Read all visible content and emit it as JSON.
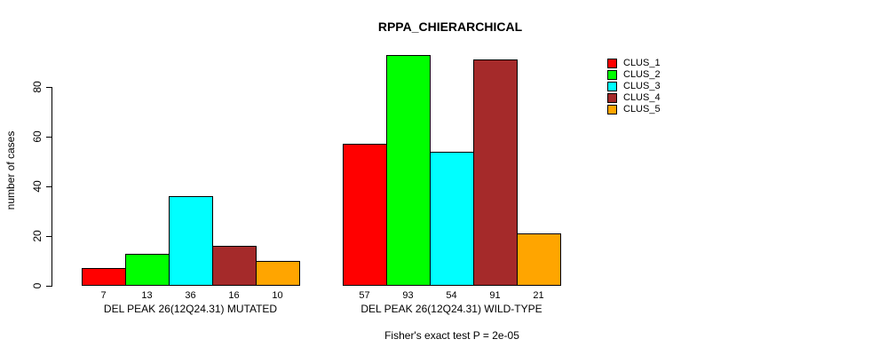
{
  "title": "RPPA_CHIERARCHICAL",
  "footnote": "Fisher's exact test P = 2e-05",
  "chart_data": {
    "type": "bar",
    "title": "RPPA_CHIERARCHICAL",
    "xlabel": "",
    "ylabel": "number of cases",
    "ylim": [
      0,
      80
    ],
    "yticks": [
      0,
      20,
      40,
      60,
      80
    ],
    "grid": false,
    "legend_position": "right",
    "categories": [
      "DEL PEAK 26(12Q24.31) MUTATED",
      "DEL PEAK 26(12Q24.31) WILD-TYPE"
    ],
    "series": [
      {
        "name": "CLUS_1",
        "color": "#ff0000",
        "values": [
          7,
          57
        ]
      },
      {
        "name": "CLUS_2",
        "color": "#00ff00",
        "values": [
          13,
          93
        ]
      },
      {
        "name": "CLUS_3",
        "color": "#00ffff",
        "values": [
          36,
          54
        ]
      },
      {
        "name": "CLUS_4",
        "color": "#a52a2a",
        "values": [
          16,
          91
        ]
      },
      {
        "name": "CLUS_5",
        "color": "#ffa500",
        "values": [
          10,
          21
        ]
      }
    ],
    "bar_value_labels": [
      [
        7,
        13,
        36,
        16,
        10
      ],
      [
        57,
        93,
        54,
        91,
        21
      ]
    ],
    "footnote": "Fisher's exact test P = 2e-05"
  }
}
